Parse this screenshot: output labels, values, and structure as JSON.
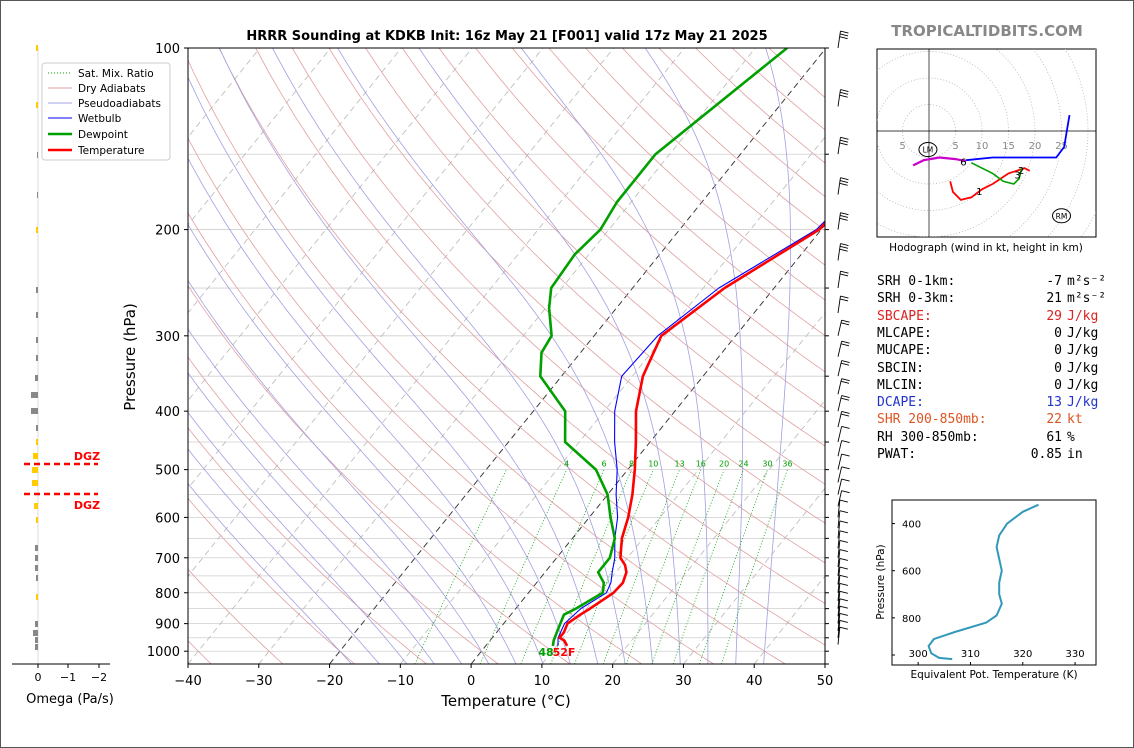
{
  "title": "HRRR Sounding at KDKB Init: 16z May 21 [F001] valid 17z May 21 2025",
  "watermark": "TROPICALTIDBITS.COM",
  "skewt": {
    "xlabel": "Temperature (°C)",
    "ylabel": "Pressure (hPa)",
    "temp_ticks": [
      -40,
      -30,
      -20,
      -10,
      0,
      10,
      20,
      30,
      40,
      50
    ],
    "temp_tick_labels": [
      "−40",
      "−30",
      "−20",
      "−10",
      "0",
      "10",
      "20",
      "30",
      "40",
      "50"
    ],
    "pressure_ticks": [
      100,
      200,
      300,
      400,
      500,
      600,
      700,
      800,
      900,
      1000
    ],
    "mixing_ratio_labels": [
      "4",
      "6",
      "8",
      "10",
      "13",
      "16",
      "20",
      "24",
      "30",
      "36"
    ],
    "surface_dewpoint_label": "48",
    "surface_temp_label": "52F",
    "legend": [
      "Sat. Mix. Ratio",
      "Dry Adiabats",
      "Pseudoadiabats",
      "Wetbulb",
      "Dewpoint",
      "Temperature"
    ],
    "colors": {
      "temperature": "#ff0000",
      "dewpoint": "#00a000",
      "wetbulb": "#0000ff",
      "dry": "#e0a0a0",
      "moist": "#a0a0e0",
      "mix": "#00a000"
    }
  },
  "chart_data": [
    {
      "type": "line",
      "title": "HRRR Sounding at KDKB Init: 16z May 21 [F001] valid 17z May 21 2025",
      "xlabel": "Temperature (°C)",
      "ylabel": "Pressure (hPa)",
      "xlim": [
        -40,
        50
      ],
      "ylim": [
        1050,
        100
      ],
      "scale_y": "log",
      "series": [
        {
          "name": "Temperature",
          "color": "#ff0000",
          "p": [
            980,
            960,
            950,
            930,
            900,
            870,
            850,
            800,
            770,
            740,
            720,
            700,
            650,
            600,
            550,
            500,
            450,
            400,
            350,
            300,
            250,
            200,
            150,
            120,
            100
          ],
          "t": [
            11.5,
            10.5,
            9.5,
            9.5,
            9.0,
            9.8,
            10.5,
            12.0,
            12.2,
            11.5,
            10.5,
            9.0,
            7.0,
            5.5,
            3.5,
            1.0,
            -2.0,
            -5.5,
            -8.5,
            -10.5,
            -7.0,
            -0.3,
            1.5,
            2.5,
            6.5
          ]
        },
        {
          "name": "Dewpoint",
          "color": "#00a000",
          "p": [
            980,
            960,
            930,
            900,
            870,
            850,
            800,
            770,
            740,
            700,
            650,
            600,
            550,
            500,
            450,
            400,
            350,
            320,
            300,
            270,
            250,
            220,
            200,
            180,
            150,
            100
          ],
          "t": [
            9.5,
            9.0,
            8.5,
            8.0,
            7.5,
            8.5,
            10.5,
            9.5,
            7.5,
            7.5,
            6.0,
            3.0,
            0.0,
            -4.5,
            -12.0,
            -15.5,
            -23.0,
            -25.5,
            -26.0,
            -29.5,
            -31.5,
            -32.0,
            -31.2,
            -32.0,
            -32.0,
            -25.5
          ]
        },
        {
          "name": "Wetbulb",
          "color": "#0000ff",
          "p": [
            980,
            950,
            900,
            850,
            800,
            770,
            740,
            700,
            650,
            600,
            550,
            500,
            450,
            400,
            350,
            300,
            250,
            200,
            150,
            120,
            100
          ],
          "t": [
            10.2,
            9.3,
            8.6,
            9.2,
            11.0,
            10.5,
            9.5,
            8.2,
            6.0,
            4.0,
            1.2,
            -1.5,
            -5.0,
            -8.5,
            -11.5,
            -11.0,
            -7.8,
            -0.7,
            1.5,
            2.5,
            6.5
          ]
        }
      ]
    },
    {
      "type": "line",
      "title": "Hodograph (wind in kt, height in km)",
      "x_ticks": [
        "5",
        "5",
        "10",
        "15",
        "20",
        "25"
      ],
      "markers": [
        "LM",
        "RM"
      ],
      "height_labels": [
        "1",
        "2",
        "3",
        "6"
      ]
    },
    {
      "type": "line",
      "title": "",
      "xlabel": "Equivalent Pot. Temperature (K)",
      "ylabel": "Pressure (hPa)",
      "xlim": [
        295,
        334
      ],
      "ylim": [
        1000,
        300
      ],
      "x_ticks": [
        300,
        310,
        320,
        330
      ],
      "y_ticks": [
        400,
        600,
        800
      ],
      "series": [
        {
          "name": "",
          "color": "#3399bb",
          "theta_e": [
            306.5,
            304,
            302.5,
            302,
            303,
            307,
            313,
            315,
            316,
            315.5,
            315.5,
            316,
            315.5,
            315,
            315.5,
            317,
            320,
            323
          ],
          "p": [
            975,
            970,
            950,
            920,
            890,
            860,
            820,
            790,
            740,
            700,
            650,
            600,
            550,
            500,
            450,
            400,
            350,
            320
          ]
        }
      ]
    },
    {
      "type": "bar",
      "xlabel": "Omega (Pa/s)",
      "x_ticks": [
        "0",
        "−1",
        "−2"
      ],
      "annotations": [
        "DGZ",
        "DGZ"
      ]
    }
  ],
  "params": [
    {
      "label": "SRH 0-1km:",
      "value": "-7",
      "unit": "m²s⁻²",
      "color": "#000000"
    },
    {
      "label": "SRH 0-3km:",
      "value": "21",
      "unit": "m²s⁻²",
      "color": "#000000"
    },
    {
      "label": "SBCAPE:",
      "value": "29",
      "unit": "J/kg",
      "color": "#dd2222"
    },
    {
      "label": "MLCAPE:",
      "value": "0",
      "unit": "J/kg",
      "color": "#000000"
    },
    {
      "label": "MUCAPE:",
      "value": "0",
      "unit": "J/kg",
      "color": "#000000"
    },
    {
      "label": "SBCIN:",
      "value": "0",
      "unit": "J/kg",
      "color": "#000000"
    },
    {
      "label": "MLCIN:",
      "value": "0",
      "unit": "J/kg",
      "color": "#000000"
    },
    {
      "label": "DCAPE:",
      "value": "13",
      "unit": "J/kg",
      "color": "#2233cc"
    },
    {
      "label": "SHR 200-850mb:",
      "value": "22",
      "unit": "kt",
      "color": "#dd5522"
    },
    {
      "label": "RH 300-850mb:",
      "value": "61",
      "unit": "%",
      "color": "#000000"
    },
    {
      "label": "PWAT:",
      "value": "0.85",
      "unit": "in",
      "color": "#000000"
    }
  ]
}
